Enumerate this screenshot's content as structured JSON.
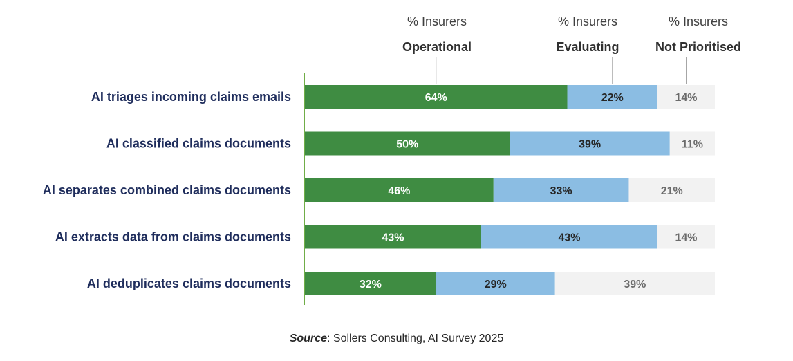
{
  "chart_data": {
    "type": "bar",
    "orientation": "horizontal",
    "stacked": true,
    "categories": [
      "AI triages incoming claims emails",
      "AI classified claims documents",
      "AI separates combined claims documents",
      "AI extracts data from claims documents",
      "AI deduplicates claims documents"
    ],
    "series": [
      {
        "name": "Operational",
        "header_line1": "% Insurers",
        "header_line2": "Operational",
        "color": "#3f8c42",
        "label_color": "#ffffff",
        "values": [
          64,
          50,
          46,
          43,
          32
        ]
      },
      {
        "name": "Evaluating",
        "header_line1": "% Insurers",
        "header_line2": "Evaluating",
        "color": "#8bbde3",
        "label_color": "#262626",
        "values": [
          22,
          39,
          33,
          43,
          29
        ]
      },
      {
        "name": "Not Prioritised",
        "header_line1": "% Insurers",
        "header_line2": "Not Prioritised",
        "color": "#f2f2f2",
        "label_color": "#6b6b6b",
        "values": [
          14,
          11,
          21,
          14,
          39
        ]
      }
    ],
    "value_suffix": "%",
    "xlim": [
      0,
      100
    ],
    "axis_color": "#70ad47",
    "label_color": "#1f2d5c"
  },
  "source": {
    "label": "Source",
    "text": ": Sollers Consulting, AI Survey 2025"
  }
}
